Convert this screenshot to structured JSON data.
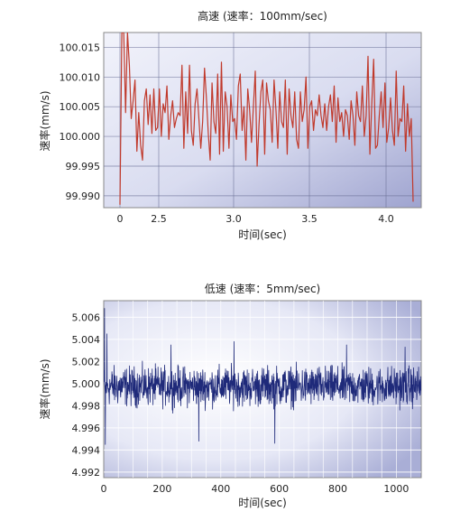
{
  "chart_data": [
    {
      "type": "line",
      "title": "高速 (速率：100mm/sec)",
      "xlabel": "时间(sec)",
      "ylabel": "速率(mm/s)",
      "xticks": [
        "0",
        "2.5",
        "3.0",
        "3.5",
        "4.0"
      ],
      "yticks": [
        "100.015",
        "100.010",
        "100.005",
        "100.000",
        "99.995",
        "99.990"
      ],
      "ylim": [
        99.988,
        100.0175
      ],
      "grid": true,
      "line_color": "#c0392b",
      "series": [
        {
          "values": [
            99.9885,
            100.0175,
            100.0175,
            100.004,
            100.0175,
            100.012,
            100.003,
            100.006,
            100.0095,
            99.9975,
            100.004,
            99.9985,
            99.996,
            100.006,
            100.008,
            100.002,
            100.007,
            100.0005,
            100.008,
            100.001,
            100.0015,
            100.008,
            100.0,
            100.0055,
            100.004,
            100.0085,
            99.9995,
            100.0035,
            100.006,
            100.0015,
            100.003,
            100.004,
            100.0035,
            100.012,
            99.998,
            100.0075,
            100.0005,
            100.012,
            100.001,
            99.9985,
            100.0055,
            100.008,
            100.003,
            99.998,
            100.0025,
            100.0115,
            100.0065,
            100.0005,
            99.996,
            100.009,
            100.0025,
            100.0005,
            100.0105,
            99.997,
            100.0125,
            99.9975,
            100.0075,
            100.005,
            99.998,
            100.007,
            100.0025,
            100.003,
            99.9995,
            100.0085,
            100.0105,
            100.001,
            100.005,
            99.996,
            100.008,
            100.0045,
            99.999,
            100.005,
            100.011,
            99.995,
            100.002,
            100.0075,
            100.0095,
            99.997,
            100.009,
            100.006,
            100.0045,
            99.999,
            100.0095,
            100.0045,
            99.998,
            100.0075,
            100.0025,
            100.0015,
            100.0095,
            99.997,
            100.008,
            100.0035,
            100.0015,
            100.0075,
            99.9995,
            99.998,
            100.0075,
            100.0025,
            100.0045,
            100.01,
            99.998,
            100.005,
            100.006,
            100.001,
            100.0045,
            100.0035,
            100.007,
            100.0035,
            100.0015,
            100.0055,
            100.001,
            100.005,
            100.007,
            100.0025,
            100.0085,
            99.999,
            100.0065,
            100.0025,
            100.004,
            100.0,
            100.0045,
            100.0035,
            99.9995,
            100.006,
            100.0035,
            99.9985,
            100.0075,
            100.0035,
            100.0025,
            100.0085,
            100.0,
            100.0035,
            100.0135,
            99.997,
            100.0055,
            100.013,
            99.998,
            99.9985,
            100.0035,
            100.0075,
            100.0015,
            100.009,
            99.999,
            100.0015,
            100.0065,
            100.001,
            99.9985,
            100.011,
            100.0,
            100.003,
            100.0025,
            100.0085,
            99.9975,
            100.0055,
            100.0,
            100.003,
            99.989
          ]
        }
      ]
    },
    {
      "type": "line",
      "title": "低速 (速率：5mm/sec)",
      "xlabel": "时间(sec)",
      "ylabel": "速率(mm/s)",
      "xticks": [
        "0",
        "200",
        "400",
        "600",
        "800",
        "1000"
      ],
      "xtick_values": [
        0,
        200,
        400,
        600,
        800,
        1000
      ],
      "xlim": [
        0,
        1085
      ],
      "yticks": [
        "5.006",
        "5.004",
        "5.002",
        "5.000",
        "4.998",
        "4.996",
        "4.994",
        "4.992"
      ],
      "ytick_values": [
        5.006,
        5.004,
        5.002,
        5.0,
        4.998,
        4.996,
        4.994,
        4.992
      ],
      "ylim": [
        4.9915,
        5.0075
      ],
      "grid": true,
      "line_color": "#1f2a7a",
      "series": [
        {
          "x_range": [
            0,
            1085
          ],
          "sample_count": 1200,
          "mean": 4.99975,
          "noise_amplitude": 0.0016,
          "peaks": [
            {
              "x": 3,
              "y": 5.0068
            },
            {
              "x": 5,
              "y": 4.9945
            },
            {
              "x": 11,
              "y": 5.0045
            },
            {
              "x": 230,
              "y": 5.0035
            },
            {
              "x": 325,
              "y": 4.9948
            },
            {
              "x": 445,
              "y": 5.0038
            },
            {
              "x": 585,
              "y": 4.9946
            },
            {
              "x": 830,
              "y": 5.0035
            },
            {
              "x": 1030,
              "y": 5.0033
            }
          ]
        }
      ]
    }
  ]
}
